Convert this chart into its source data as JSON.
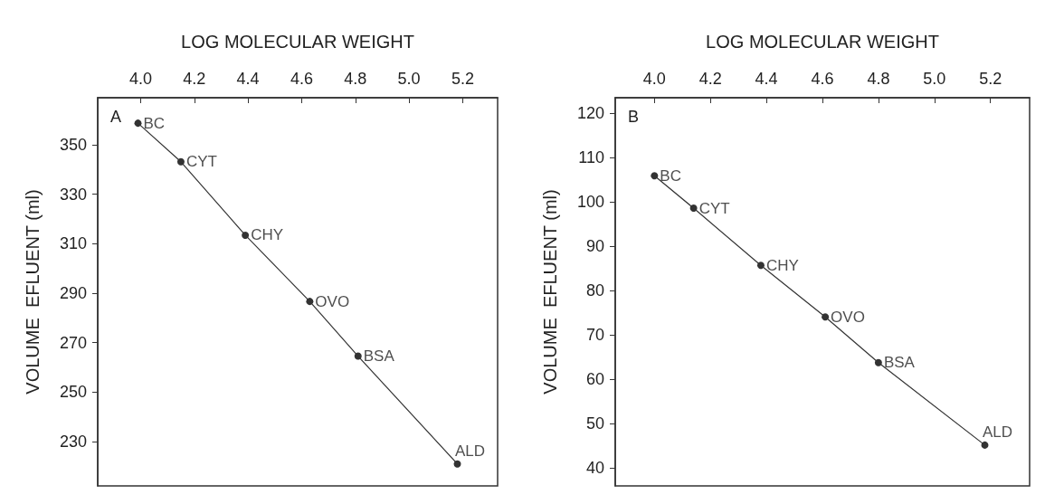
{
  "chart_data": [
    {
      "type": "line",
      "xlabel": "LOG MOLECULAR WEIGHT",
      "ylabel": "VOLUME  EFLUENT (ml)",
      "marker": "circle",
      "line_style": "solid",
      "grid": false,
      "xlim": [
        3.84,
        5.33
      ],
      "xticks": [
        {
          "value": 4,
          "label": "4.0"
        },
        {
          "value": 4.2,
          "label": "4.2"
        },
        {
          "value": 4.4,
          "label": "4.4"
        },
        {
          "value": 4.6,
          "label": "4.6"
        },
        {
          "value": 4.8,
          "label": "4.8"
        },
        {
          "value": 5,
          "label": "5.0"
        },
        {
          "value": 5.2,
          "label": "5.2"
        }
      ],
      "ylim": [
        212,
        369
      ],
      "yticks": [
        230,
        250,
        270,
        290,
        310,
        330,
        350
      ],
      "x": [
        3.99,
        4.15,
        4.39,
        4.63,
        4.81,
        5.18
      ],
      "series": [
        {
          "color": "#333333",
          "values": [
            358.7,
            343.1,
            313.4,
            286.6,
            264.5,
            220.9
          ]
        }
      ],
      "annotations": [
        "A",
        {
          "text": "BC",
          "x": 3.99,
          "y": 358.7
        },
        {
          "text": "CYT",
          "x": 4.15,
          "y": 343.1
        },
        {
          "text": "CHY",
          "x": 4.39,
          "y": 313.4
        },
        {
          "text": "OVO",
          "x": 4.63,
          "y": 286.6
        },
        {
          "text": "BSA",
          "x": 4.81,
          "y": 264.5
        },
        {
          "text": "ALD",
          "x": 5.18,
          "y": 220.9
        }
      ]
    },
    {
      "type": "line",
      "xlabel": "LOG MOLECULAR WEIGHT",
      "ylabel": "VOLUME  EFLUENT (ml)",
      "marker": "circle",
      "line_style": "solid",
      "grid": false,
      "xlim": [
        3.86,
        5.34
      ],
      "xticks": [
        {
          "value": 4,
          "label": "4.0"
        },
        {
          "value": 4.2,
          "label": "4.2"
        },
        {
          "value": 4.4,
          "label": "4.4"
        },
        {
          "value": 4.6,
          "label": "4.6"
        },
        {
          "value": 4.8,
          "label": "4.8"
        },
        {
          "value": 5,
          "label": "5.0"
        },
        {
          "value": 5.2,
          "label": "5.2"
        }
      ],
      "ylim": [
        36,
        123.5
      ],
      "yticks": [
        40,
        50,
        60,
        70,
        80,
        90,
        100,
        110,
        120
      ],
      "x": [
        4.0,
        4.14,
        4.38,
        4.61,
        4.8,
        5.18
      ],
      "series": [
        {
          "color": "#333333",
          "values": [
            105.9,
            98.6,
            85.7,
            74.1,
            63.8,
            45.2
          ]
        }
      ],
      "annotations": [
        "B",
        {
          "text": "BC",
          "x": 4.0,
          "y": 105.9
        },
        {
          "text": "CYT",
          "x": 4.14,
          "y": 98.6
        },
        {
          "text": "CHY",
          "x": 4.38,
          "y": 85.7
        },
        {
          "text": "OVO",
          "x": 4.61,
          "y": 74.1
        },
        {
          "text": "BSA",
          "x": 4.8,
          "y": 63.8
        },
        {
          "text": "ALD",
          "x": 5.18,
          "y": 45.2
        }
      ]
    }
  ]
}
